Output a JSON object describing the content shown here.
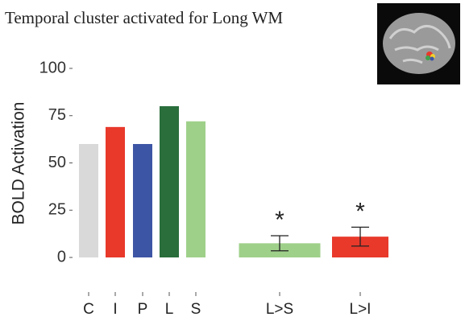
{
  "chart_data": {
    "type": "bar",
    "title": "Temporal cluster activated for Long WM",
    "y_label": "BOLD Activation",
    "categories": [
      "C",
      "I",
      "P",
      "L",
      "S",
      "L>S",
      "L>I"
    ],
    "values": [
      60,
      69,
      60,
      80,
      72,
      7.5,
      11
    ],
    "errors": [
      null,
      null,
      null,
      null,
      null,
      4,
      5
    ],
    "significance": [
      null,
      null,
      null,
      null,
      null,
      "*",
      "*"
    ],
    "colors": [
      "#d9d9d9",
      "#e8392b",
      "#3d55a5",
      "#2a6e3c",
      "#9fd08a",
      "#9fd08a",
      "#e8392b"
    ],
    "ylim": [
      0,
      100
    ],
    "yticks": [
      0,
      25,
      50,
      75,
      100
    ],
    "grid": false
  }
}
